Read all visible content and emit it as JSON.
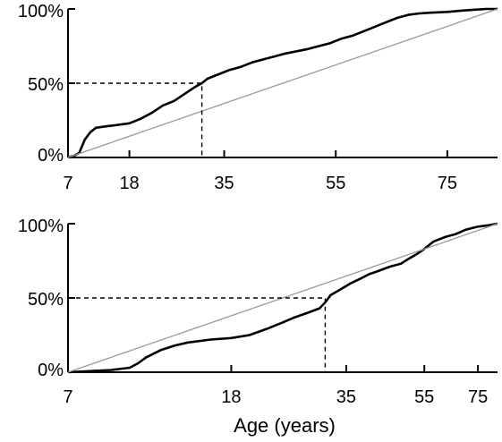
{
  "chart_data": [
    {
      "type": "line",
      "x_scale": "linear",
      "xlabel": "",
      "ylabel": "",
      "xlim": [
        7,
        84
      ],
      "ylim": [
        0,
        100
      ],
      "x_ticks": [
        7,
        18,
        35,
        55,
        75
      ],
      "y_ticks": [
        0,
        50,
        100
      ],
      "y_tick_labels": [
        "0%",
        "50%",
        "100%"
      ],
      "grid": false,
      "series": [
        {
          "style": "curve",
          "color": "#000000",
          "points": [
            [
              7,
              0
            ],
            [
              8,
              1
            ],
            [
              9,
              3
            ],
            [
              10,
              12
            ],
            [
              11,
              17
            ],
            [
              12,
              20
            ],
            [
              14,
              21
            ],
            [
              16,
              22
            ],
            [
              18,
              23
            ],
            [
              20,
              26
            ],
            [
              22,
              30
            ],
            [
              24,
              35
            ],
            [
              26,
              38
            ],
            [
              28,
              43
            ],
            [
              30,
              48
            ],
            [
              31,
              50
            ],
            [
              32,
              53
            ],
            [
              34,
              56
            ],
            [
              36,
              59
            ],
            [
              38,
              61
            ],
            [
              40,
              64
            ],
            [
              42,
              66
            ],
            [
              44,
              68
            ],
            [
              46,
              70
            ],
            [
              48,
              71.5
            ],
            [
              50,
              73
            ],
            [
              52,
              75
            ],
            [
              54,
              77
            ],
            [
              56,
              80
            ],
            [
              58,
              82
            ],
            [
              60,
              85
            ],
            [
              62,
              88
            ],
            [
              64,
              91
            ],
            [
              66,
              94
            ],
            [
              68,
              96
            ],
            [
              70,
              97
            ],
            [
              72,
              97.5
            ],
            [
              75,
              98
            ],
            [
              78,
              99
            ],
            [
              80,
              99.5
            ],
            [
              82,
              100
            ],
            [
              84,
              100
            ]
          ]
        },
        {
          "style": "reference",
          "color": "#9a9a9a",
          "points": [
            [
              7,
              0
            ],
            [
              84,
              100
            ]
          ]
        },
        {
          "style": "median-guide",
          "color": "#000000",
          "points": [
            [
              7,
              50
            ],
            [
              31,
              50
            ],
            [
              31,
              0
            ]
          ]
        }
      ]
    },
    {
      "type": "line",
      "x_scale": "log",
      "xlabel": "Age (years)",
      "ylabel": "",
      "xlim": [
        7,
        84
      ],
      "ylim": [
        0,
        100
      ],
      "x_ticks": [
        7,
        18,
        35,
        55,
        75
      ],
      "y_ticks": [
        0,
        50,
        100
      ],
      "y_tick_labels": [
        "0%",
        "50%",
        "100%"
      ],
      "grid": false,
      "series": [
        {
          "style": "curve",
          "color": "#000000",
          "points": [
            [
              7,
              0
            ],
            [
              8,
              0.8
            ],
            [
              9,
              1.5
            ],
            [
              10,
              3
            ],
            [
              10.5,
              6
            ],
            [
              11,
              10
            ],
            [
              12,
              15
            ],
            [
              13,
              18
            ],
            [
              14,
              20
            ],
            [
              16,
              22
            ],
            [
              18,
              23
            ],
            [
              20,
              25
            ],
            [
              22,
              29
            ],
            [
              24,
              33
            ],
            [
              26,
              37
            ],
            [
              28,
              40
            ],
            [
              30,
              43
            ],
            [
              31,
              47
            ],
            [
              32,
              52
            ],
            [
              34,
              56
            ],
            [
              36,
              60
            ],
            [
              38,
              63
            ],
            [
              40,
              66
            ],
            [
              42,
              68
            ],
            [
              45,
              71
            ],
            [
              48,
              73
            ],
            [
              50,
              76
            ],
            [
              53,
              80
            ],
            [
              55,
              83
            ],
            [
              58,
              88
            ],
            [
              62,
              91
            ],
            [
              66,
              93
            ],
            [
              70,
              96
            ],
            [
              75,
              98
            ],
            [
              80,
              99
            ],
            [
              84,
              100
            ]
          ]
        },
        {
          "style": "reference",
          "color": "#9a9a9a",
          "points": [
            [
              7,
              0
            ],
            [
              84,
              100
            ]
          ]
        },
        {
          "style": "median-guide",
          "color": "#000000",
          "points": [
            [
              7,
              50
            ],
            [
              31,
              50
            ],
            [
              31,
              0
            ]
          ]
        }
      ]
    }
  ]
}
